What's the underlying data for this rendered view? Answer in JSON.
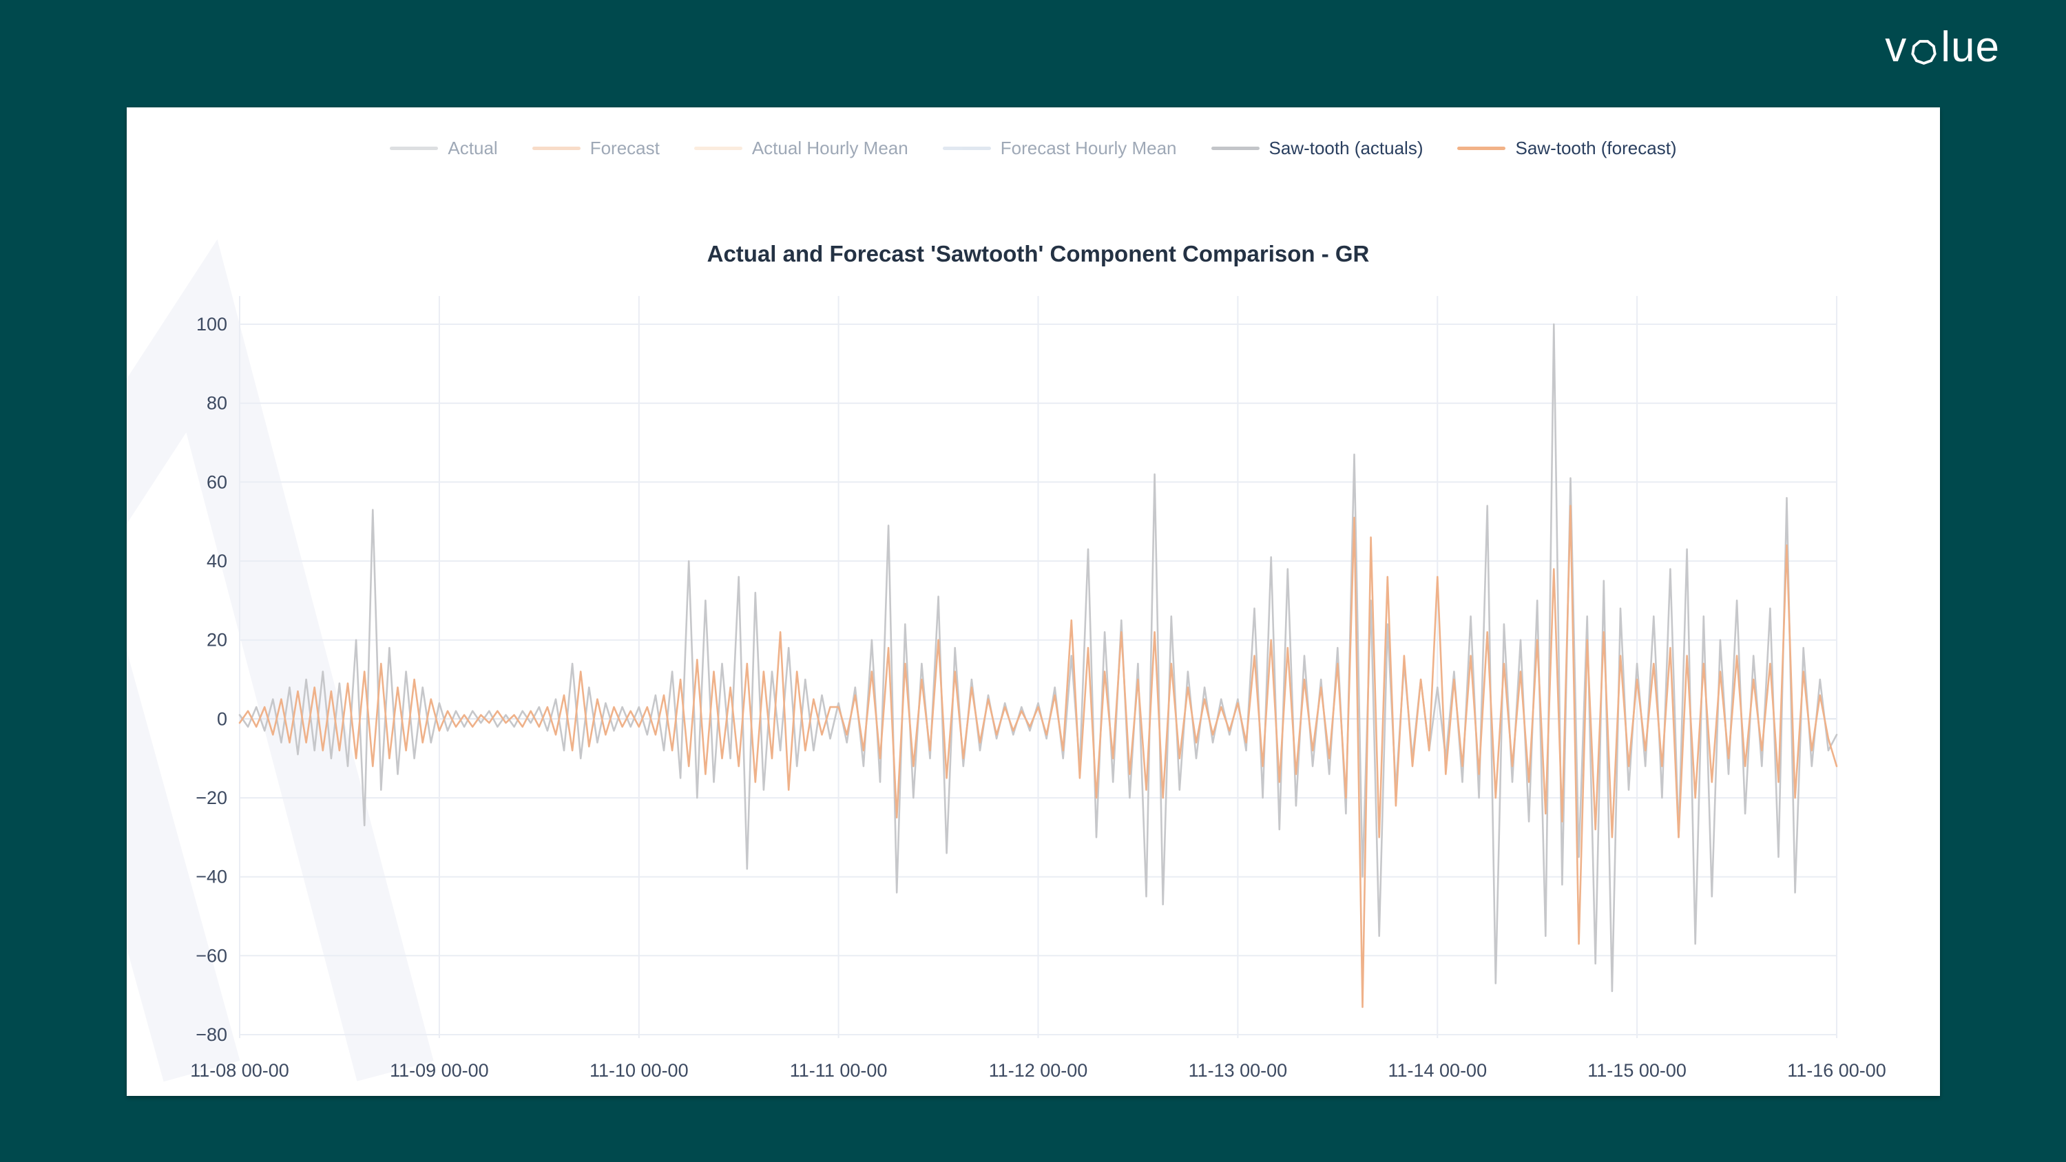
{
  "page": {
    "background_color": "#00494d",
    "logo": {
      "prefix": "v",
      "suffix": "lue",
      "text": "volue"
    }
  },
  "chart": {
    "title": "Actual and Forecast 'Sawtooth' Component Comparison - GR",
    "legend": [
      {
        "label": "Actual",
        "color": "#b4b7bc",
        "muted": true
      },
      {
        "label": "Forecast",
        "color": "#f1b286",
        "muted": true
      },
      {
        "label": "Actual Hourly Mean",
        "color": "#f8d7b8",
        "muted": true
      },
      {
        "label": "Forecast Hourly Mean",
        "color": "#bccbe0",
        "muted": true
      },
      {
        "label": "Saw-tooth (actuals)",
        "color": "#c3c5c9",
        "muted": false
      },
      {
        "label": "Saw-tooth (forecast)",
        "color": "#f2b287",
        "muted": false
      }
    ]
  },
  "chart_data": {
    "type": "line",
    "title": "Actual and Forecast 'Sawtooth' Component Comparison - GR",
    "xlabel": "",
    "ylabel": "",
    "x_tick_labels": [
      "11-08 00-00",
      "11-09 00-00",
      "11-10 00-00",
      "11-11 00-00",
      "11-12 00-00",
      "11-13 00-00",
      "11-14 00-00",
      "11-15 00-00",
      "11-16 00-00"
    ],
    "y_ticks": [
      100,
      80,
      60,
      40,
      20,
      0,
      -20,
      -40,
      -60,
      -80
    ],
    "ylim": [
      -81,
      107
    ],
    "x_hours_per_point": 1,
    "grid": true,
    "legend_position": "top-center",
    "hidden_series": [
      "Actual",
      "Forecast",
      "Actual Hourly Mean",
      "Forecast Hourly Mean"
    ],
    "series": [
      {
        "name": "Saw-tooth (actuals)",
        "color": "#c6c7ca",
        "values": [
          1,
          -2,
          3,
          -3,
          5,
          -6,
          8,
          -9,
          10,
          -8,
          12,
          -10,
          9,
          -12,
          20,
          -27,
          53,
          -18,
          18,
          -14,
          12,
          -10,
          8,
          -6,
          4,
          -3,
          2,
          -2,
          2,
          -1,
          2,
          -2,
          1,
          -2,
          2,
          -1,
          3,
          -3,
          5,
          -8,
          14,
          -10,
          8,
          -6,
          4,
          -3,
          3,
          -2,
          3,
          -4,
          6,
          -8,
          12,
          -15,
          40,
          -20,
          30,
          -16,
          14,
          -10,
          36,
          -38,
          32,
          -18,
          12,
          -8,
          18,
          -12,
          10,
          -8,
          6,
          -5,
          4,
          -6,
          8,
          -12,
          20,
          -16,
          49,
          -44,
          24,
          -20,
          14,
          -10,
          31,
          -34,
          18,
          -12,
          10,
          -8,
          6,
          -5,
          4,
          -4,
          3,
          -3,
          4,
          -5,
          8,
          -10,
          16,
          -12,
          43,
          -30,
          22,
          -16,
          25,
          -20,
          14,
          -45,
          62,
          -47,
          26,
          -18,
          12,
          -10,
          8,
          -6,
          5,
          -4,
          5,
          -8,
          28,
          -20,
          41,
          -28,
          38,
          -22,
          16,
          -12,
          10,
          -14,
          18,
          -24,
          67,
          -40,
          30,
          -55,
          24,
          -18,
          14,
          -10,
          10,
          -8,
          8,
          -10,
          12,
          -16,
          26,
          -20,
          54,
          -67,
          24,
          -16,
          20,
          -26,
          30,
          -55,
          100,
          -42,
          61,
          -35,
          26,
          -62,
          35,
          -69,
          28,
          -18,
          14,
          -12,
          26,
          -20,
          38,
          -30,
          43,
          -57,
          26,
          -45,
          20,
          -14,
          30,
          -24,
          16,
          -12,
          28,
          -35,
          56,
          -44,
          18,
          -12,
          10,
          -8,
          -4
        ]
      },
      {
        "name": "Saw-tooth (forecast)",
        "color": "#efb189",
        "values": [
          -1,
          2,
          -2,
          3,
          -4,
          5,
          -6,
          7,
          -6,
          8,
          -8,
          7,
          -8,
          9,
          -10,
          12,
          -12,
          14,
          -10,
          8,
          -8,
          10,
          -6,
          5,
          -3,
          2,
          -2,
          1,
          -2,
          1,
          -1,
          2,
          -1,
          1,
          -2,
          2,
          -2,
          3,
          -4,
          6,
          -8,
          12,
          -7,
          5,
          -4,
          3,
          -2,
          2,
          -2,
          3,
          -4,
          6,
          -8,
          10,
          -12,
          15,
          -14,
          12,
          -10,
          8,
          -12,
          14,
          -16,
          12,
          -10,
          22,
          -18,
          12,
          -8,
          5,
          -4,
          3,
          3,
          -4,
          6,
          -8,
          12,
          -10,
          18,
          -25,
          14,
          -12,
          10,
          -8,
          20,
          -15,
          12,
          -10,
          8,
          -6,
          5,
          -4,
          3,
          -3,
          2,
          -2,
          3,
          -4,
          6,
          -8,
          25,
          -15,
          18,
          -20,
          12,
          -10,
          22,
          -14,
          10,
          -18,
          22,
          -20,
          14,
          -10,
          8,
          -6,
          5,
          -4,
          3,
          -3,
          4,
          -6,
          16,
          -12,
          20,
          -16,
          18,
          -14,
          10,
          -8,
          8,
          -10,
          14,
          -20,
          51,
          -73,
          46,
          -30,
          36,
          -22,
          16,
          -12,
          10,
          -8,
          36,
          -14,
          10,
          -12,
          16,
          -14,
          22,
          -20,
          14,
          -12,
          12,
          -16,
          20,
          -24,
          38,
          -26,
          54,
          -57,
          20,
          -28,
          22,
          -30,
          16,
          -12,
          10,
          -8,
          14,
          -12,
          18,
          -30,
          16,
          -20,
          14,
          -16,
          12,
          -10,
          16,
          -12,
          10,
          -8,
          14,
          -16,
          44,
          -20,
          12,
          -8,
          6,
          -5,
          -12
        ]
      }
    ],
    "style": {
      "gridline_color": "#eaedf4",
      "zeroline_color": "#e1e5ee",
      "tick_label_color": "#3d4a61",
      "watermark_color": "#f5f6fa"
    }
  }
}
